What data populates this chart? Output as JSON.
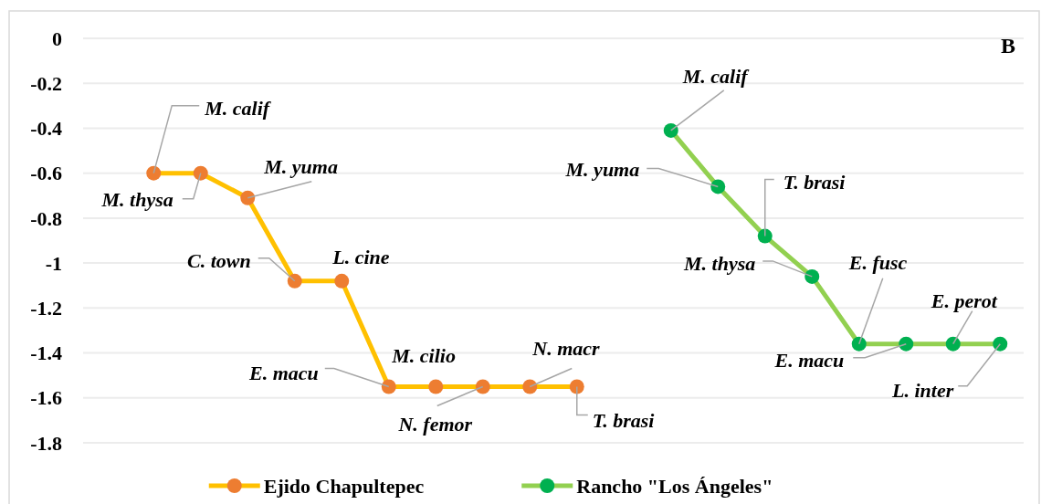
{
  "chart_data": {
    "type": "line",
    "categories": [
      null,
      null,
      null,
      null,
      null,
      null,
      null,
      null,
      null,
      null,
      null,
      null,
      null,
      null,
      null,
      null,
      null,
      null,
      null,
      null
    ],
    "ylim": [
      -1.8,
      0
    ],
    "yticks": [
      0,
      -0.2,
      -0.4,
      -0.6,
      -0.8,
      -1,
      -1.2,
      -1.4,
      -1.6,
      -1.8
    ],
    "grid": "y",
    "legend": "bottom",
    "marker": "circle",
    "line_style": "solid",
    "series": [
      {
        "name": "Ejido Chapultepec",
        "color": "#ffc000",
        "colors": [
          null,
          "#ed7d31",
          "#ed7d31",
          "#ed7d31",
          "#ed7d31",
          "#ed7d31",
          "#ed7d31",
          "#ed7d31",
          "#ed7d31",
          "#ed7d31",
          "#ed7d31",
          null,
          null,
          null,
          null,
          null,
          null,
          null,
          null,
          null
        ],
        "values": [
          null,
          -0.6,
          -0.6,
          -0.71,
          -1.08,
          -1.08,
          -1.55,
          -1.55,
          -1.55,
          -1.55,
          -1.55,
          null,
          null,
          null,
          null,
          null,
          null,
          null,
          null,
          null
        ]
      },
      {
        "name": "Rancho \"Los Ángeles\"",
        "color": "#92d050",
        "colors": [
          null,
          null,
          null,
          null,
          null,
          null,
          null,
          null,
          null,
          null,
          null,
          null,
          "#00b050",
          "#00b050",
          "#00b050",
          "#00b050",
          "#00b050",
          "#00b050",
          "#00b050",
          "#00b050"
        ],
        "values": [
          null,
          null,
          null,
          null,
          null,
          null,
          null,
          null,
          null,
          null,
          null,
          null,
          -0.41,
          -0.66,
          -0.88,
          -1.06,
          -1.36,
          -1.36,
          -1.36,
          -1.36
        ]
      }
    ],
    "annotations": [
      "M. calif",
      "M. thysa",
      "M. yuma",
      "C. town",
      "L. cine",
      "E. macu",
      "M. cilio",
      "N. femor",
      "N. macr",
      "T. brasi",
      "M. calif",
      "M. yuma",
      "T. brasi",
      "M. thysa",
      "E. fusc",
      "E. macu",
      "E. perot",
      "L. inter",
      "B"
    ]
  }
}
